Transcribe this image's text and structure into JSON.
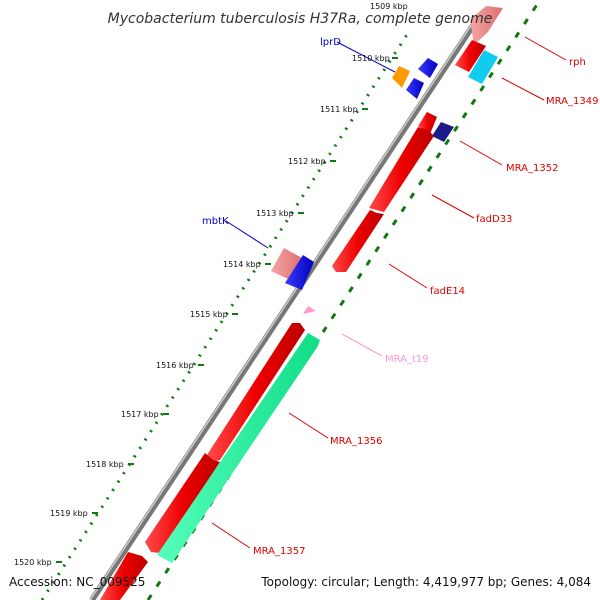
{
  "title": "Mycobacterium tuberculosis H37Ra, complete genome",
  "accession": "Accession: NC_009525",
  "topology": "Topology: circular; Length: 4,419,977 bp; Genes: 4,084",
  "colors": {
    "forward_gene": "#0000ee",
    "reverse_gene": "#ee0000",
    "light_reverse_gene": "#ee8888",
    "rna_gene": "#ff99cc",
    "backbone": "#777777",
    "ruler_dots": "#117711"
  },
  "ruler_unit": "kbp",
  "ruler_ticks": [
    "1509 kbp",
    "1510 kbp",
    "1511 kbp",
    "1512 kbp",
    "1513 kbp",
    "1514 kbp",
    "1515 kbp",
    "1516 kbp",
    "1517 kbp",
    "1518 kbp",
    "1519 kbp",
    "1520 kbp"
  ],
  "gene_labels": [
    {
      "name": "rph",
      "color": "#dd0000"
    },
    {
      "name": "MRA_1349",
      "color": "#dd0000"
    },
    {
      "name": "lprD",
      "color": "#0000cc"
    },
    {
      "name": "MRA_1352",
      "color": "#dd0000"
    },
    {
      "name": "fadD33",
      "color": "#dd0000"
    },
    {
      "name": "mbtK",
      "color": "#0000cc"
    },
    {
      "name": "fadE14",
      "color": "#dd0000"
    },
    {
      "name": "MRA_t19",
      "color": "#ff99cc"
    },
    {
      "name": "MRA_1356",
      "color": "#dd0000"
    },
    {
      "name": "MRA_1357",
      "color": "#dd0000"
    }
  ]
}
